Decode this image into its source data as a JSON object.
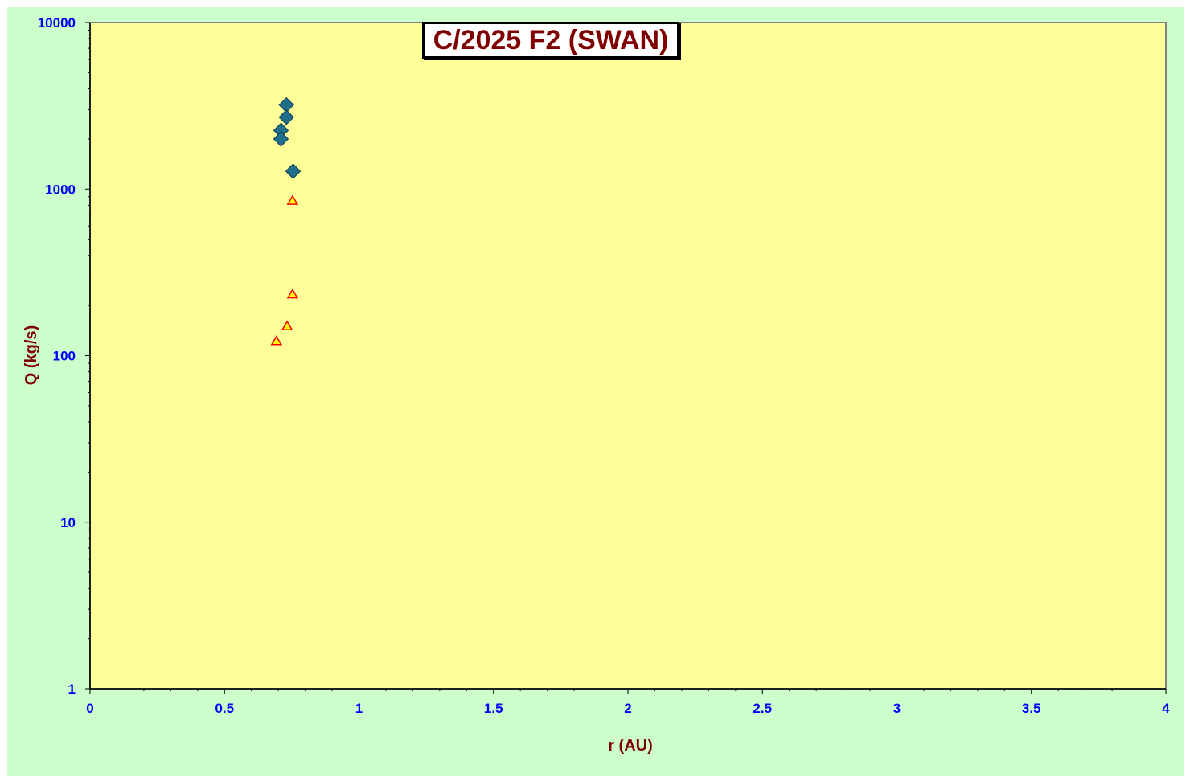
{
  "chart_data": {
    "type": "scatter",
    "title": "C/2025 F2 (SWAN)",
    "xlabel": "r (AU)",
    "ylabel": "Q (kg/s)",
    "xlim": [
      0,
      4
    ],
    "ylim": [
      1,
      10000
    ],
    "yscale": "log",
    "x_ticks": [
      "0",
      "0.5",
      "1",
      "1.5",
      "2",
      "2.5",
      "3",
      "3.5",
      "4"
    ],
    "y_ticks": [
      "1",
      "10",
      "100",
      "1000",
      "10000"
    ],
    "grid": false,
    "legend": "none",
    "series": [
      {
        "marker": "diamond",
        "color": "#1f6f8b",
        "points": [
          {
            "x": 0.73,
            "y": 3200
          },
          {
            "x": 0.73,
            "y": 2700
          },
          {
            "x": 0.71,
            "y": 2250
          },
          {
            "x": 0.71,
            "y": 2000
          },
          {
            "x": 0.755,
            "y": 1280
          }
        ]
      },
      {
        "marker": "triangle",
        "color": "#ffff00",
        "stroke": "#ff0000",
        "points": [
          {
            "x": 0.753,
            "y": 850
          },
          {
            "x": 0.753,
            "y": 233
          },
          {
            "x": 0.733,
            "y": 150
          },
          {
            "x": 0.693,
            "y": 122
          }
        ]
      }
    ]
  },
  "colors": {
    "outer_background": "#ccffcc",
    "plot_background": "#ffff99",
    "tick_label": "#0000ff",
    "axis_title": "#800000"
  }
}
